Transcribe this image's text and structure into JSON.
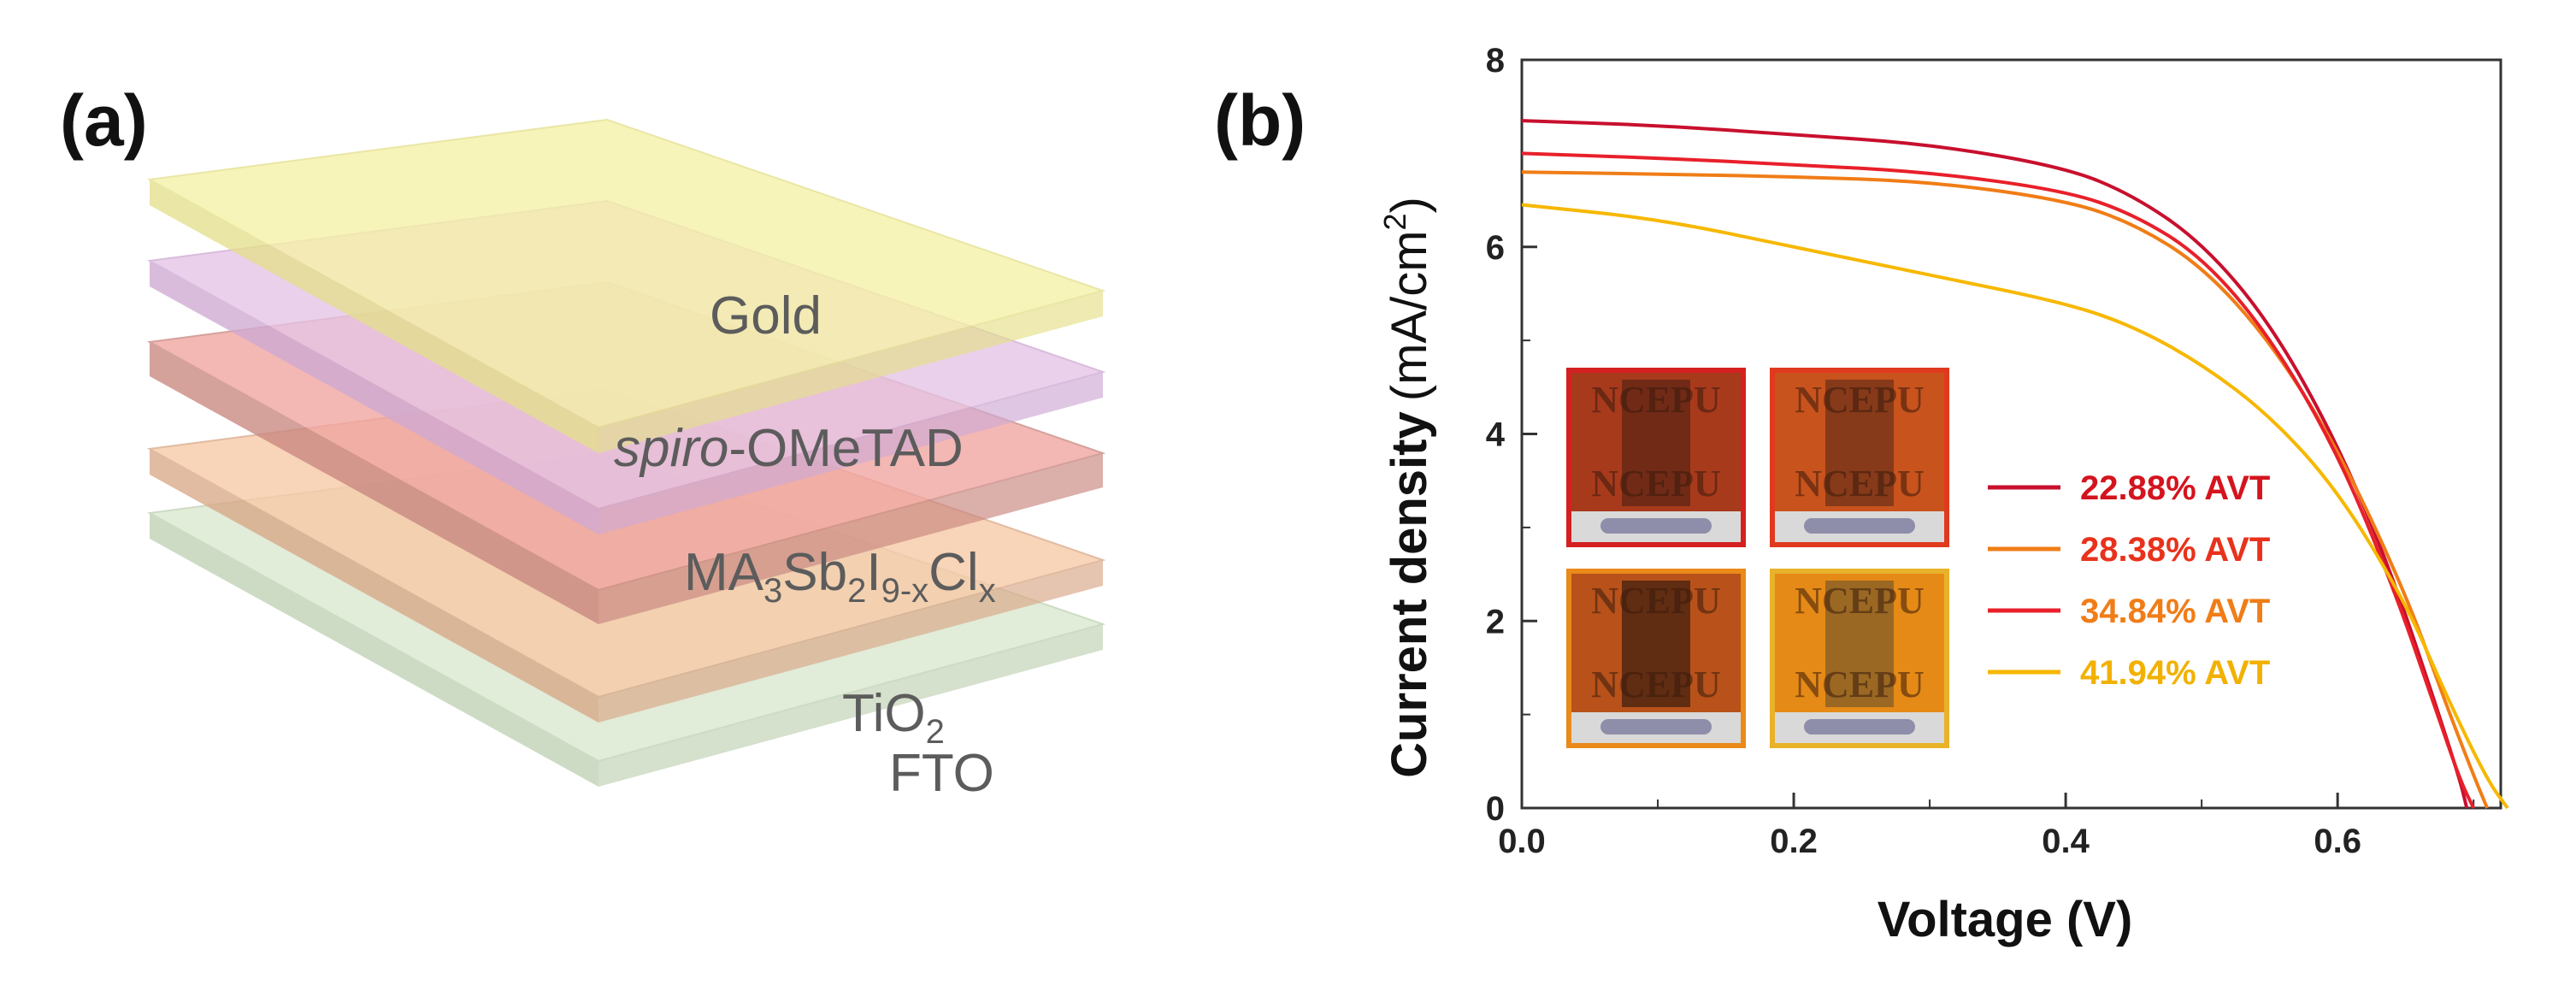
{
  "panel_a": {
    "label": "(a)",
    "layers": [
      {
        "key": "gold",
        "name": "Gold",
        "fill": "#f6f2a6",
        "side": "#e5df8c"
      },
      {
        "key": "spiro",
        "name_italic": "spiro",
        "name_rest": "-OMeTAD",
        "fill": "#e5c4e6",
        "side": "#cfaad3"
      },
      {
        "key": "ma",
        "name_base": "MA",
        "sub1": "3",
        "mid1": "Sb",
        "sub2": "2",
        "mid2": "I",
        "sub3": "9-x",
        "mid3": "Cl",
        "sub4": "x",
        "fill": "#f0a4a0",
        "side": "#c98780"
      },
      {
        "key": "tio2",
        "name_base": "TiO",
        "sub1": "2",
        "fill": "#f7c9a5",
        "side": "#d9a888"
      },
      {
        "key": "fto",
        "name": "FTO",
        "fill": "#d9e7cf",
        "side": "#c0d1b4"
      }
    ]
  },
  "panel_b": {
    "label": "(b)",
    "inset_photo_text": "NCEPU",
    "photo_frames": [
      "#d42020",
      "#e03a1e",
      "#e98a1a",
      "#e8b22a"
    ]
  },
  "chart_data": {
    "type": "line",
    "xlabel": "Voltage (V)",
    "ylabel_main": "Current density",
    "ylabel_unit_base": "(mA/cm",
    "ylabel_unit_sup": "2",
    "ylabel_unit_close": ")",
    "xlim": [
      0.0,
      0.72
    ],
    "ylim": [
      0,
      8
    ],
    "x_ticks": [
      0.0,
      0.2,
      0.4,
      0.6
    ],
    "x_tick_labels": [
      "0.0",
      "0.2",
      "0.4",
      "0.6"
    ],
    "y_ticks": [
      0,
      2,
      4,
      6,
      8
    ],
    "y_tick_labels": [
      "0",
      "2",
      "4",
      "6",
      "8"
    ],
    "series": [
      {
        "name": "22.88% AVT",
        "color": "#c8102e",
        "x": [
          0.0,
          0.1,
          0.2,
          0.3,
          0.4,
          0.45,
          0.5,
          0.55,
          0.6,
          0.64,
          0.67,
          0.69,
          0.695
        ],
        "y": [
          7.35,
          7.3,
          7.2,
          7.1,
          6.85,
          6.55,
          6.05,
          5.2,
          3.9,
          2.5,
          1.2,
          0.3,
          0.0
        ]
      },
      {
        "name": "28.38% AVT",
        "color": "#f07d17",
        "x": [
          0.0,
          0.1,
          0.2,
          0.3,
          0.4,
          0.45,
          0.5,
          0.55,
          0.6,
          0.65,
          0.68,
          0.7,
          0.71
        ],
        "y": [
          6.8,
          6.78,
          6.75,
          6.7,
          6.5,
          6.25,
          5.8,
          5.0,
          3.85,
          2.3,
          1.1,
          0.35,
          0.0
        ]
      },
      {
        "name": "34.84% AVT",
        "color": "#e8202a",
        "x": [
          0.0,
          0.1,
          0.2,
          0.3,
          0.4,
          0.45,
          0.5,
          0.55,
          0.6,
          0.64,
          0.67,
          0.69,
          0.7
        ],
        "y": [
          7.0,
          6.95,
          6.88,
          6.8,
          6.6,
          6.35,
          5.9,
          5.05,
          3.8,
          2.4,
          1.15,
          0.3,
          0.0
        ]
      },
      {
        "name": "41.94% AVT",
        "color": "#f6b800",
        "x": [
          0.0,
          0.1,
          0.2,
          0.3,
          0.4,
          0.45,
          0.5,
          0.55,
          0.6,
          0.65,
          0.68,
          0.71,
          0.725
        ],
        "y": [
          6.45,
          6.3,
          6.0,
          5.7,
          5.4,
          5.15,
          4.75,
          4.2,
          3.4,
          2.2,
          1.2,
          0.3,
          0.0
        ]
      }
    ],
    "legend": {
      "placement": "inside-right"
    }
  }
}
